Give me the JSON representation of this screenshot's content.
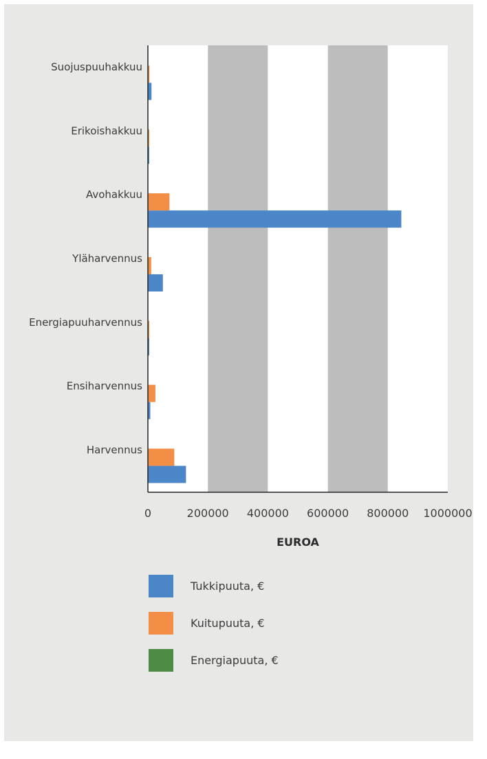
{
  "chart_data": {
    "type": "bar",
    "orientation": "horizontal",
    "categories": [
      "Harvennus",
      "Ensiharvennus",
      "Energiapuuharvennus",
      "Yläharvennus",
      "Avohakkuu",
      "Erikoishakkuu",
      "Suojuspuuhakkuu"
    ],
    "series": [
      {
        "name": "Tukkipuuta, €",
        "color": "#4a86c8",
        "values": [
          127000,
          8000,
          1000,
          50000,
          845000,
          1000,
          12000
        ]
      },
      {
        "name": "Kuitupuuta, €",
        "color": "#f28e45",
        "values": [
          88000,
          25000,
          1000,
          11000,
          72000,
          1000,
          5000
        ]
      },
      {
        "name": "Energiapuuta, €",
        "color": "#4e8b45",
        "values": [
          0,
          0,
          0,
          0,
          0,
          0,
          0
        ]
      }
    ],
    "xlabel": "EUROA",
    "ylabel": "",
    "title": "",
    "xlim": [
      0,
      1000000
    ],
    "xticks": [
      "0",
      "200000",
      "400000",
      "600000",
      "800000",
      "1000000"
    ],
    "legend_position": "bottom",
    "gridlines": false,
    "alternating_bands": true,
    "band_color": "#bcbdbc"
  }
}
